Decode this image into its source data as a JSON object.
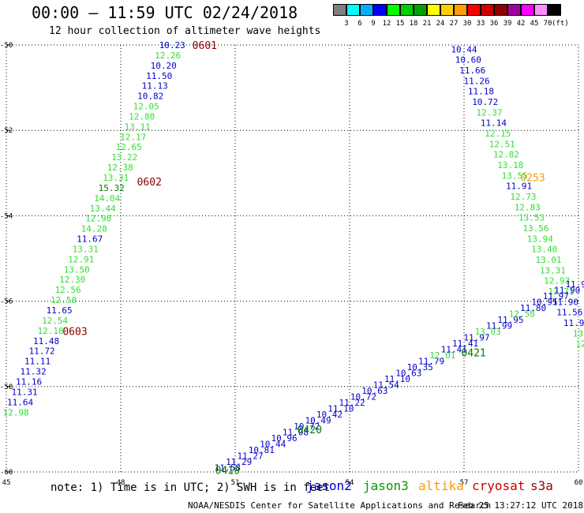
{
  "title": "00:00 — 11:59 UTC 02/24/2018",
  "subtitle": "12 hour collection of altimeter wave heights",
  "colorbar": {
    "unit": "(ft)",
    "colors": [
      "#808080",
      "#00ffff",
      "#00b0ff",
      "#0000ff",
      "#00ff00",
      "#00d000",
      "#00a000",
      "#ffff00",
      "#ffd000",
      "#ffa000",
      "#ff0000",
      "#d00000",
      "#900000",
      "#a000a0",
      "#ff00ff",
      "#ff90ff",
      "#000000"
    ],
    "labels": [
      "3",
      "6",
      "9",
      "12",
      "15",
      "18",
      "21",
      "24",
      "27",
      "30",
      "33",
      "36",
      "39",
      "42",
      "45",
      "70"
    ]
  },
  "note": "note: 1) Time is in UTC; 2) SWH is in feet",
  "legend": [
    {
      "name": "jason2",
      "color": "#0000cc"
    },
    {
      "name": "jason3",
      "color": "#009900"
    },
    {
      "name": "altika",
      "color": "#ff9900"
    },
    {
      "name": "cryosat",
      "color": "#cc0000"
    },
    {
      "name": "s3a",
      "color": "#990000"
    }
  ],
  "credit": "NOAA/NESDIS Center for Satellite Applications and Research",
  "stamp": "Feb 25 13:27:12 UTC 2018",
  "chart_data": {
    "type": "scatter",
    "x_axis": {
      "range": [
        45,
        60
      ],
      "ticks": [
        45,
        48,
        51,
        54,
        57,
        60
      ]
    },
    "y_axis": {
      "range": [
        -60,
        -50
      ],
      "ticks": [
        -50,
        -52,
        -54,
        -56,
        -58,
        -60
      ]
    },
    "grid": true,
    "colors": {
      "jason2": "#0000cc",
      "jason3": "#33dd33",
      "altika": "#ff9900",
      "time": "#880000",
      "time_j3": "#007700"
    },
    "tracks": [
      {
        "name": "track-1",
        "x_start": 49.35,
        "x_end": 45.25,
        "y_start": -50.0,
        "y_end": -58.6,
        "values": [
          "10.23",
          "12.26",
          "10.20",
          "11.50",
          "11.13",
          "10.82",
          "12.05",
          "12.80",
          "13.11",
          "12.17",
          "12.65",
          "13.22",
          "12.38",
          "13.31",
          "15.32",
          "14.04",
          "13.44",
          "12.98",
          "14.28",
          "11.67",
          "13.31",
          "12.91",
          "13.50",
          "12.30",
          "12.56",
          "12.50",
          "11.65",
          "12.54",
          "12.18",
          "11.48",
          "11.72",
          "11.11",
          "11.32",
          "11.16",
          "11.31",
          "11.64",
          "12.98"
        ],
        "satellites": [
          "j2",
          "j3",
          "j2",
          "j2",
          "j2",
          "j2",
          "j3",
          "j3",
          "j3",
          "j3",
          "j3",
          "j3",
          "j3",
          "j3",
          "j3g",
          "j3",
          "j3",
          "j3",
          "j3",
          "j2",
          "j3",
          "j3",
          "j3",
          "j3",
          "j3",
          "j3",
          "j2",
          "j3",
          "j3",
          "j2",
          "j2",
          "j2",
          "j2",
          "j2",
          "j2",
          "j2",
          "j3"
        ]
      },
      {
        "name": "track-2",
        "x_start": 57.0,
        "x_end": 60.1,
        "y_start": -50.1,
        "y_end": -57.0,
        "values": [
          "10.44",
          "10.60",
          "11.66",
          "11.26",
          "11.18",
          "10.72",
          "12.37",
          "11.14",
          "12.15",
          "12.51",
          "12.82",
          "13.18",
          "13.55",
          "11.91",
          "12.73",
          "12.83",
          "13.53",
          "13.56",
          "13.94",
          "13.40",
          "13.01",
          "13.31",
          "12.93",
          "12.71",
          "11.90",
          "11.56",
          "11.9",
          "13",
          "12"
        ],
        "satellites": [
          "j2",
          "j2",
          "j2",
          "j2",
          "j2",
          "j2",
          "j3",
          "j2",
          "j3",
          "j3",
          "j3",
          "j3",
          "j3",
          "j2",
          "j3",
          "j3",
          "j3",
          "j3",
          "j3",
          "j3",
          "j3",
          "j3",
          "j3",
          "j3",
          "j2",
          "j2",
          "j2",
          "j3",
          "j3"
        ]
      },
      {
        "name": "track-3",
        "x_start": 50.8,
        "x_end": 60.0,
        "y_start": -59.9,
        "y_end": -55.6,
        "values": [
          "11.58",
          "11.29",
          "11.27",
          "10.81",
          "10.44",
          "10.96",
          "11.08",
          "10.72",
          "10.49",
          "10.42",
          "11.10",
          "11.22",
          "10.72",
          "10.63",
          "11.54",
          "11.10",
          "10.63",
          "10.35",
          "11.79",
          "12.01",
          "11.41",
          "11.41",
          "11.97",
          "13.03",
          "11.99",
          "11.95",
          "12.58",
          "11.80",
          "10.95",
          "11.97",
          "11.90",
          "11.90"
        ],
        "satellites": [
          "j2",
          "j2",
          "j2",
          "j2",
          "j2",
          "j2",
          "j2",
          "j2",
          "j2",
          "j2",
          "j2",
          "j2",
          "j2",
          "j2",
          "j2",
          "j2",
          "j2",
          "j2",
          "j2",
          "j3",
          "j2",
          "j2",
          "j2",
          "j3",
          "j2",
          "j2",
          "j3",
          "j2",
          "j2",
          "j2",
          "j2",
          "j2"
        ]
      }
    ],
    "time_labels": [
      {
        "text": "0601",
        "lon": 50.2,
        "lat": -50.0,
        "kind": "time"
      },
      {
        "text": "0602",
        "lon": 48.75,
        "lat": -53.2,
        "kind": "time"
      },
      {
        "text": "0603",
        "lon": 46.8,
        "lat": -56.7,
        "kind": "time"
      },
      {
        "text": "0253",
        "lon": 58.8,
        "lat": -53.1,
        "kind": "altika"
      },
      {
        "text": "0421",
        "lon": 57.25,
        "lat": -57.2,
        "kind": "time_j3"
      },
      {
        "text": "0420",
        "lon": 52.95,
        "lat": -59.0,
        "kind": "time_j3"
      },
      {
        "text": "0419",
        "lon": 50.8,
        "lat": -59.95,
        "kind": "time_j3"
      }
    ]
  }
}
